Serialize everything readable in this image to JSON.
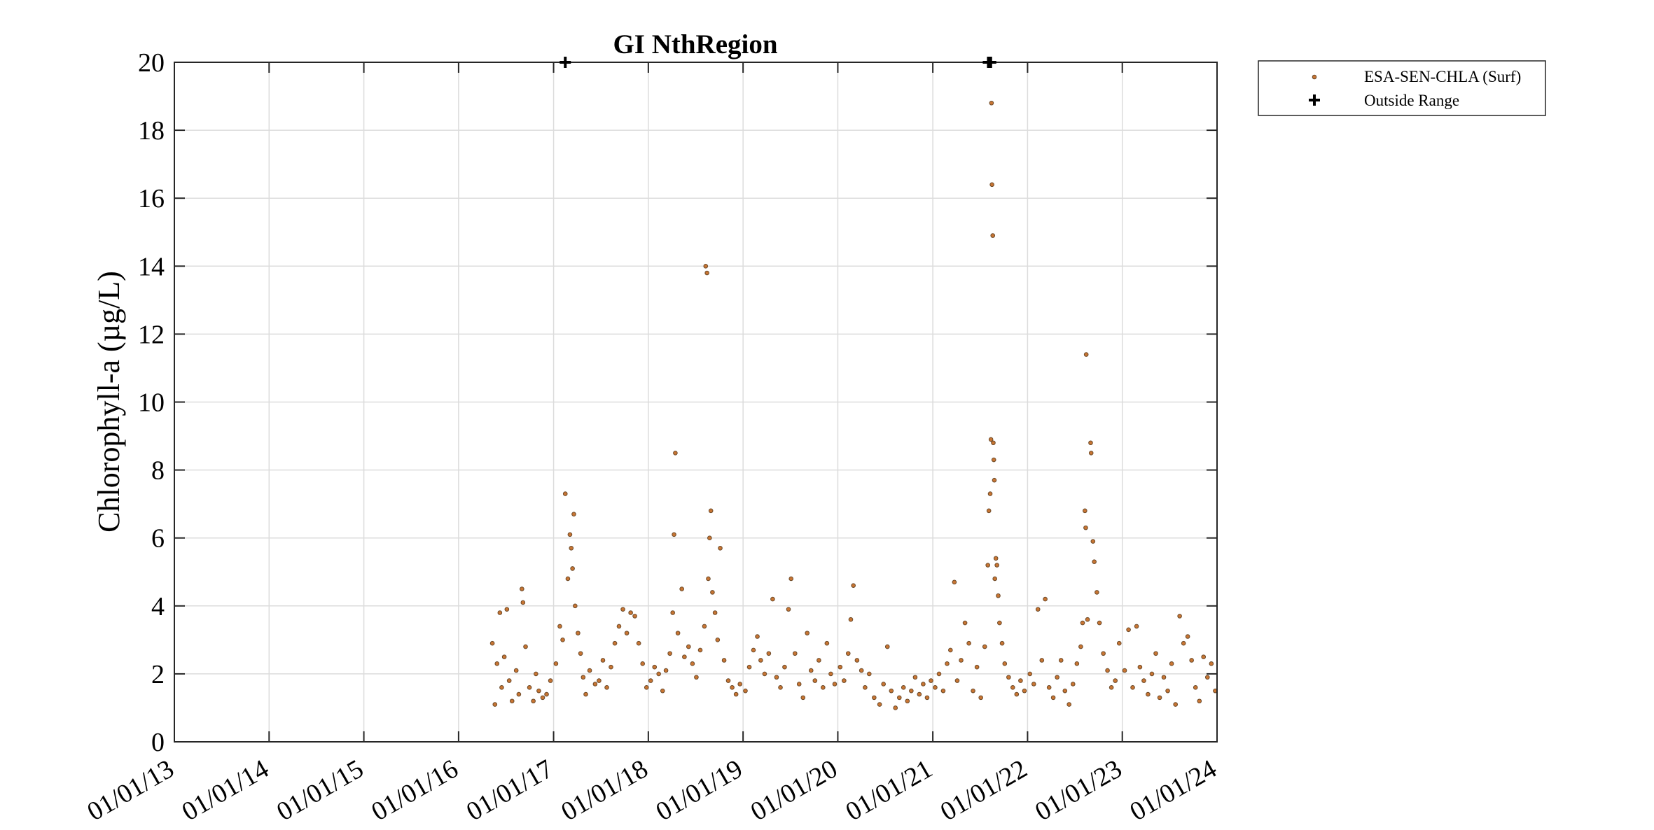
{
  "chart_data": {
    "type": "scatter",
    "title": "GI NthRegion",
    "ylabel": "Chlorophyll-a (µg/L)",
    "xlabel": "",
    "xlim": [
      "2013-01-01",
      "2024-01-01"
    ],
    "ylim": [
      0,
      20
    ],
    "x_ticks": [
      "01/01/13",
      "01/01/14",
      "01/01/15",
      "01/01/16",
      "01/01/17",
      "01/01/18",
      "01/01/19",
      "01/01/20",
      "01/01/21",
      "01/01/22",
      "01/01/23",
      "01/01/24"
    ],
    "y_ticks": [
      0,
      2,
      4,
      6,
      8,
      10,
      12,
      14,
      16,
      18,
      20
    ],
    "grid": true,
    "legend_position": "outside-top-right",
    "series": [
      {
        "name": "ESA-SEN-CHLA (Surf)",
        "marker": "circle",
        "color": "#c87533",
        "edge_color": "#6b4a2a",
        "points": [
          [
            "2016-05-10",
            2.9
          ],
          [
            "2016-05-20",
            1.1
          ],
          [
            "2016-05-28",
            2.3
          ],
          [
            "2016-06-08",
            3.8
          ],
          [
            "2016-06-15",
            1.6
          ],
          [
            "2016-06-25",
            2.5
          ],
          [
            "2016-07-05",
            3.9
          ],
          [
            "2016-07-14",
            1.8
          ],
          [
            "2016-07-25",
            1.2
          ],
          [
            "2016-08-10",
            2.1
          ],
          [
            "2016-08-20",
            1.4
          ],
          [
            "2016-09-01",
            4.5
          ],
          [
            "2016-09-05",
            4.1
          ],
          [
            "2016-09-15",
            2.8
          ],
          [
            "2016-09-30",
            1.6
          ],
          [
            "2016-10-15",
            1.2
          ],
          [
            "2016-10-25",
            2.0
          ],
          [
            "2016-11-05",
            1.5
          ],
          [
            "2016-11-20",
            1.3
          ],
          [
            "2016-12-05",
            1.4
          ],
          [
            "2016-12-20",
            1.8
          ],
          [
            "2017-01-10",
            2.3
          ],
          [
            "2017-01-25",
            3.4
          ],
          [
            "2017-02-05",
            3.0
          ],
          [
            "2017-02-15",
            7.3
          ],
          [
            "2017-02-25",
            4.8
          ],
          [
            "2017-03-05",
            6.1
          ],
          [
            "2017-03-10",
            5.7
          ],
          [
            "2017-03-15",
            5.1
          ],
          [
            "2017-03-20",
            6.7
          ],
          [
            "2017-03-25",
            4.0
          ],
          [
            "2017-04-05",
            3.2
          ],
          [
            "2017-04-15",
            2.6
          ],
          [
            "2017-04-25",
            1.9
          ],
          [
            "2017-05-05",
            1.4
          ],
          [
            "2017-05-20",
            2.1
          ],
          [
            "2017-06-10",
            1.7
          ],
          [
            "2017-06-25",
            1.8
          ],
          [
            "2017-07-10",
            2.4
          ],
          [
            "2017-07-25",
            1.6
          ],
          [
            "2017-08-10",
            2.2
          ],
          [
            "2017-08-25",
            2.9
          ],
          [
            "2017-09-10",
            3.4
          ],
          [
            "2017-09-25",
            3.9
          ],
          [
            "2017-10-10",
            3.2
          ],
          [
            "2017-10-25",
            3.8
          ],
          [
            "2017-11-10",
            3.7
          ],
          [
            "2017-11-25",
            2.9
          ],
          [
            "2017-12-10",
            2.3
          ],
          [
            "2017-12-25",
            1.6
          ],
          [
            "2018-01-10",
            1.8
          ],
          [
            "2018-01-25",
            2.2
          ],
          [
            "2018-02-10",
            2.0
          ],
          [
            "2018-02-25",
            1.5
          ],
          [
            "2018-03-10",
            2.1
          ],
          [
            "2018-03-25",
            2.6
          ],
          [
            "2018-04-05",
            3.8
          ],
          [
            "2018-04-10",
            6.1
          ],
          [
            "2018-04-15",
            8.5
          ],
          [
            "2018-04-25",
            3.2
          ],
          [
            "2018-05-10",
            4.5
          ],
          [
            "2018-05-20",
            2.5
          ],
          [
            "2018-06-05",
            2.8
          ],
          [
            "2018-06-20",
            2.3
          ],
          [
            "2018-07-05",
            1.9
          ],
          [
            "2018-07-20",
            2.7
          ],
          [
            "2018-08-05",
            3.4
          ],
          [
            "2018-08-10",
            14.0
          ],
          [
            "2018-08-15",
            13.8
          ],
          [
            "2018-08-20",
            4.8
          ],
          [
            "2018-08-25",
            6.0
          ],
          [
            "2018-08-30",
            6.8
          ],
          [
            "2018-09-05",
            4.4
          ],
          [
            "2018-09-15",
            3.8
          ],
          [
            "2018-09-25",
            3.0
          ],
          [
            "2018-10-05",
            5.7
          ],
          [
            "2018-10-20",
            2.4
          ],
          [
            "2018-11-05",
            1.8
          ],
          [
            "2018-11-20",
            1.6
          ],
          [
            "2018-12-05",
            1.4
          ],
          [
            "2018-12-20",
            1.7
          ],
          [
            "2019-01-10",
            1.5
          ],
          [
            "2019-01-25",
            2.2
          ],
          [
            "2019-02-10",
            2.7
          ],
          [
            "2019-02-25",
            3.1
          ],
          [
            "2019-03-10",
            2.4
          ],
          [
            "2019-03-25",
            2.0
          ],
          [
            "2019-04-10",
            2.6
          ],
          [
            "2019-04-25",
            4.2
          ],
          [
            "2019-05-10",
            1.9
          ],
          [
            "2019-05-25",
            1.6
          ],
          [
            "2019-06-10",
            2.2
          ],
          [
            "2019-06-25",
            3.9
          ],
          [
            "2019-07-05",
            4.8
          ],
          [
            "2019-07-20",
            2.6
          ],
          [
            "2019-08-05",
            1.7
          ],
          [
            "2019-08-20",
            1.3
          ],
          [
            "2019-09-05",
            3.2
          ],
          [
            "2019-09-20",
            2.1
          ],
          [
            "2019-10-05",
            1.8
          ],
          [
            "2019-10-20",
            2.4
          ],
          [
            "2019-11-05",
            1.6
          ],
          [
            "2019-11-20",
            2.9
          ],
          [
            "2019-12-05",
            2.0
          ],
          [
            "2019-12-20",
            1.7
          ],
          [
            "2020-01-10",
            2.2
          ],
          [
            "2020-01-25",
            1.8
          ],
          [
            "2020-02-10",
            2.6
          ],
          [
            "2020-02-20",
            3.6
          ],
          [
            "2020-03-01",
            4.6
          ],
          [
            "2020-03-15",
            2.4
          ],
          [
            "2020-04-01",
            2.1
          ],
          [
            "2020-04-15",
            1.6
          ],
          [
            "2020-05-01",
            2.0
          ],
          [
            "2020-05-20",
            1.3
          ],
          [
            "2020-06-10",
            1.1
          ],
          [
            "2020-06-25",
            1.7
          ],
          [
            "2020-07-10",
            2.8
          ],
          [
            "2020-07-25",
            1.5
          ],
          [
            "2020-08-10",
            1.0
          ],
          [
            "2020-08-25",
            1.3
          ],
          [
            "2020-09-10",
            1.6
          ],
          [
            "2020-09-25",
            1.2
          ],
          [
            "2020-10-10",
            1.5
          ],
          [
            "2020-10-25",
            1.9
          ],
          [
            "2020-11-10",
            1.4
          ],
          [
            "2020-11-25",
            1.7
          ],
          [
            "2020-12-10",
            1.3
          ],
          [
            "2020-12-25",
            1.8
          ],
          [
            "2021-01-10",
            1.6
          ],
          [
            "2021-01-25",
            2.0
          ],
          [
            "2021-02-10",
            1.5
          ],
          [
            "2021-02-25",
            2.3
          ],
          [
            "2021-03-10",
            2.7
          ],
          [
            "2021-03-25",
            4.7
          ],
          [
            "2021-04-05",
            1.8
          ],
          [
            "2021-04-20",
            2.4
          ],
          [
            "2021-05-05",
            3.5
          ],
          [
            "2021-05-20",
            2.9
          ],
          [
            "2021-06-05",
            1.5
          ],
          [
            "2021-06-20",
            2.2
          ],
          [
            "2021-07-05",
            1.3
          ],
          [
            "2021-07-20",
            2.8
          ],
          [
            "2021-08-01",
            5.2
          ],
          [
            "2021-08-05",
            6.8
          ],
          [
            "2021-08-10",
            7.3
          ],
          [
            "2021-08-13",
            8.9
          ],
          [
            "2021-08-15",
            18.8
          ],
          [
            "2021-08-17",
            16.4
          ],
          [
            "2021-08-20",
            14.9
          ],
          [
            "2021-08-22",
            8.8
          ],
          [
            "2021-08-24",
            8.3
          ],
          [
            "2021-08-26",
            7.7
          ],
          [
            "2021-08-28",
            4.8
          ],
          [
            "2021-09-01",
            5.4
          ],
          [
            "2021-09-05",
            5.2
          ],
          [
            "2021-09-10",
            4.3
          ],
          [
            "2021-09-15",
            3.5
          ],
          [
            "2021-09-25",
            2.9
          ],
          [
            "2021-10-05",
            2.3
          ],
          [
            "2021-10-20",
            1.9
          ],
          [
            "2021-11-05",
            1.6
          ],
          [
            "2021-11-20",
            1.4
          ],
          [
            "2021-12-05",
            1.8
          ],
          [
            "2021-12-20",
            1.5
          ],
          [
            "2022-01-10",
            2.0
          ],
          [
            "2022-01-25",
            1.7
          ],
          [
            "2022-02-10",
            3.9
          ],
          [
            "2022-02-25",
            2.4
          ],
          [
            "2022-03-10",
            4.2
          ],
          [
            "2022-03-25",
            1.6
          ],
          [
            "2022-04-10",
            1.3
          ],
          [
            "2022-04-25",
            1.9
          ],
          [
            "2022-05-10",
            2.4
          ],
          [
            "2022-05-25",
            1.5
          ],
          [
            "2022-06-10",
            1.1
          ],
          [
            "2022-06-25",
            1.7
          ],
          [
            "2022-07-10",
            2.3
          ],
          [
            "2022-07-25",
            2.8
          ],
          [
            "2022-08-01",
            3.5
          ],
          [
            "2022-08-10",
            6.8
          ],
          [
            "2022-08-13",
            6.3
          ],
          [
            "2022-08-15",
            11.4
          ],
          [
            "2022-08-20",
            3.6
          ],
          [
            "2022-09-01",
            8.8
          ],
          [
            "2022-09-03",
            8.5
          ],
          [
            "2022-09-10",
            5.9
          ],
          [
            "2022-09-15",
            5.3
          ],
          [
            "2022-09-25",
            4.4
          ],
          [
            "2022-10-05",
            3.5
          ],
          [
            "2022-10-20",
            2.6
          ],
          [
            "2022-11-05",
            2.1
          ],
          [
            "2022-11-20",
            1.6
          ],
          [
            "2022-12-05",
            1.8
          ],
          [
            "2022-12-20",
            2.9
          ],
          [
            "2023-01-10",
            2.1
          ],
          [
            "2023-01-25",
            3.3
          ],
          [
            "2023-02-10",
            1.6
          ],
          [
            "2023-02-25",
            3.4
          ],
          [
            "2023-03-10",
            2.2
          ],
          [
            "2023-03-25",
            1.8
          ],
          [
            "2023-04-10",
            1.4
          ],
          [
            "2023-04-25",
            2.0
          ],
          [
            "2023-05-10",
            2.6
          ],
          [
            "2023-05-25",
            1.3
          ],
          [
            "2023-06-10",
            1.9
          ],
          [
            "2023-06-25",
            1.5
          ],
          [
            "2023-07-10",
            2.3
          ],
          [
            "2023-07-25",
            1.1
          ],
          [
            "2023-08-10",
            3.7
          ],
          [
            "2023-08-25",
            2.9
          ],
          [
            "2023-09-10",
            3.1
          ],
          [
            "2023-09-25",
            2.4
          ],
          [
            "2023-10-10",
            1.6
          ],
          [
            "2023-10-25",
            1.2
          ],
          [
            "2023-11-10",
            2.5
          ],
          [
            "2023-11-25",
            1.9
          ],
          [
            "2023-12-10",
            2.3
          ],
          [
            "2023-12-25",
            1.5
          ]
        ]
      },
      {
        "name": "Outside Range",
        "marker": "plus",
        "color": "#000000",
        "points": [
          [
            "2017-02-15",
            20
          ],
          [
            "2021-08-03",
            20
          ],
          [
            "2021-08-12",
            20
          ]
        ]
      }
    ]
  }
}
